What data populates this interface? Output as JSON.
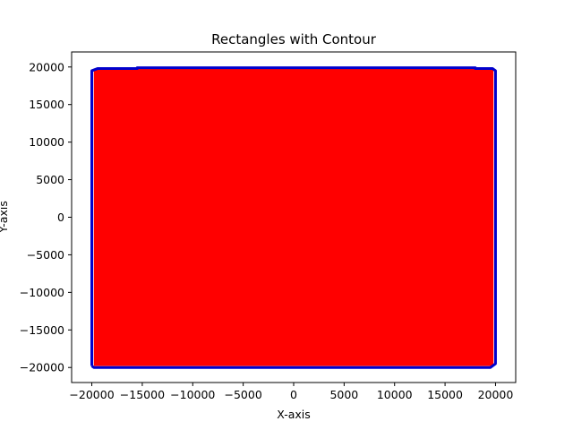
{
  "chart_data": {
    "type": "area",
    "title": "Rectangles with Contour",
    "xlabel": "X-axis",
    "ylabel": "Y-axis",
    "xlim": [
      -22000,
      22000
    ],
    "ylim": [
      -22000,
      22000
    ],
    "xticks": [
      -20000,
      -15000,
      -10000,
      -5000,
      0,
      5000,
      10000,
      15000,
      20000
    ],
    "yticks": [
      -20000,
      -15000,
      -10000,
      -5000,
      0,
      5000,
      10000,
      15000,
      20000
    ],
    "xtick_labels": [
      "−20000",
      "−15000",
      "−10000",
      "−5000",
      "0",
      "5000",
      "10000",
      "15000",
      "20000"
    ],
    "ytick_labels": [
      "−20000",
      "−15000",
      "−10000",
      "−5000",
      "0",
      "5000",
      "10000",
      "15000",
      "20000"
    ],
    "fill_color": "#ff0000",
    "contour_color": "#0000cc",
    "grid": false,
    "fill_region": {
      "x": [
        -19800,
        19800
      ],
      "y": [
        -19800,
        19800
      ]
    },
    "contour": [
      [
        -20000,
        -19800
      ],
      [
        -20000,
        19500
      ],
      [
        -19400,
        19800
      ],
      [
        -15500,
        19800
      ],
      [
        -15500,
        19900
      ],
      [
        18000,
        19900
      ],
      [
        18000,
        19800
      ],
      [
        19700,
        19800
      ],
      [
        20000,
        19500
      ],
      [
        20000,
        -19500
      ],
      [
        19500,
        -20000
      ],
      [
        -19800,
        -20000
      ],
      [
        -20000,
        -19800
      ]
    ]
  }
}
